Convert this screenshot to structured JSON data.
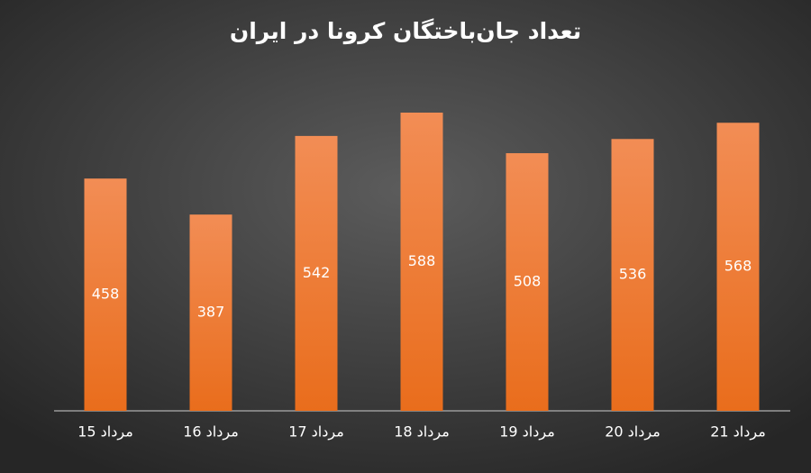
{
  "chart_data": {
    "type": "bar",
    "title": "تعداد جان‌باختگان کرونا در ایران",
    "categories": [
      "15 مرداد",
      "16 مرداد",
      "17 مرداد",
      "18 مرداد",
      "19 مرداد",
      "20 مرداد",
      "21 مرداد"
    ],
    "values": [
      458,
      387,
      542,
      588,
      508,
      536,
      568
    ],
    "color": "#ee7b34"
  }
}
